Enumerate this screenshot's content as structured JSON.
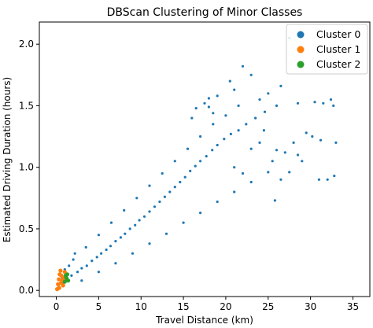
{
  "chart_data": {
    "type": "scatter",
    "title": "DBScan Clustering of Minor Classes",
    "xlabel": "Travel Distance (km)",
    "ylabel": "Estimated Driving Duration (hours)",
    "xlim": [
      -2,
      37
    ],
    "ylim": [
      -0.05,
      2.18
    ],
    "xticks": [
      0,
      5,
      10,
      15,
      20,
      25,
      30,
      35
    ],
    "xtick_labels": [
      "0",
      "5",
      "10",
      "15",
      "20",
      "25",
      "30",
      "35"
    ],
    "yticks": [
      0.0,
      0.5,
      1.0,
      1.5,
      2.0
    ],
    "ytick_labels": [
      "0.0",
      "0.5",
      "1.0",
      "1.5",
      "2.0"
    ],
    "grid": false,
    "legend_position": "top-right",
    "series": [
      {
        "name": "Cluster 0",
        "color": "#1f77b4",
        "points": [
          [
            0.3,
            0.03
          ],
          [
            0.8,
            0.06
          ],
          [
            1.2,
            0.09
          ],
          [
            1.8,
            0.12
          ],
          [
            2.5,
            0.15
          ],
          [
            3.0,
            0.18
          ],
          [
            3.6,
            0.2
          ],
          [
            4.2,
            0.24
          ],
          [
            4.8,
            0.27
          ],
          [
            5.3,
            0.3
          ],
          [
            5.9,
            0.33
          ],
          [
            6.4,
            0.36
          ],
          [
            7.0,
            0.4
          ],
          [
            7.6,
            0.43
          ],
          [
            8.1,
            0.46
          ],
          [
            8.7,
            0.5
          ],
          [
            9.3,
            0.53
          ],
          [
            9.8,
            0.57
          ],
          [
            10.4,
            0.6
          ],
          [
            11.0,
            0.64
          ],
          [
            11.6,
            0.68
          ],
          [
            12.2,
            0.72
          ],
          [
            12.8,
            0.76
          ],
          [
            13.4,
            0.8
          ],
          [
            14.0,
            0.84
          ],
          [
            14.6,
            0.88
          ],
          [
            15.2,
            0.92
          ],
          [
            15.8,
            0.97
          ],
          [
            16.4,
            1.01
          ],
          [
            17.0,
            1.05
          ],
          [
            17.7,
            1.09
          ],
          [
            18.4,
            1.14
          ],
          [
            19.0,
            1.18
          ],
          [
            19.8,
            1.23
          ],
          [
            20.6,
            1.27
          ],
          [
            21.5,
            1.3
          ],
          [
            22.4,
            1.35
          ],
          [
            23.5,
            1.4
          ],
          [
            24.6,
            1.45
          ],
          [
            26.0,
            1.5
          ],
          [
            2.0,
            0.25
          ],
          [
            3.5,
            0.35
          ],
          [
            5.0,
            0.45
          ],
          [
            6.5,
            0.55
          ],
          [
            8.0,
            0.65
          ],
          [
            9.5,
            0.75
          ],
          [
            11.0,
            0.85
          ],
          [
            12.5,
            0.95
          ],
          [
            14.0,
            1.05
          ],
          [
            15.5,
            1.15
          ],
          [
            17.0,
            1.25
          ],
          [
            18.5,
            1.35
          ],
          [
            20.0,
            1.42
          ],
          [
            21.5,
            1.5
          ],
          [
            18.0,
            1.49
          ],
          [
            16.0,
            1.4
          ],
          [
            3.0,
            0.08
          ],
          [
            5.0,
            0.15
          ],
          [
            7.0,
            0.22
          ],
          [
            9.0,
            0.3
          ],
          [
            11.0,
            0.38
          ],
          [
            13.0,
            0.46
          ],
          [
            15.0,
            0.55
          ],
          [
            17.0,
            0.63
          ],
          [
            19.0,
            0.72
          ],
          [
            21.0,
            0.8
          ],
          [
            23.0,
            0.88
          ],
          [
            25.0,
            0.96
          ],
          [
            1.5,
            0.2
          ],
          [
            2.2,
            0.3
          ],
          [
            1.0,
            0.17
          ],
          [
            0.7,
            0.1
          ],
          [
            26.0,
            1.14
          ],
          [
            27.0,
            1.12
          ],
          [
            28.0,
            1.2
          ],
          [
            25.5,
            1.05
          ],
          [
            24.0,
            1.2
          ],
          [
            23.0,
            1.15
          ],
          [
            21.0,
            1.0
          ],
          [
            24.5,
            1.3
          ],
          [
            22.0,
            0.95
          ],
          [
            27.5,
            2.05
          ],
          [
            28.5,
            1.52
          ],
          [
            30.5,
            1.53
          ],
          [
            31.5,
            1.52
          ],
          [
            32.4,
            1.55
          ],
          [
            32.7,
            1.5
          ],
          [
            31.0,
            0.9
          ],
          [
            32.0,
            0.9
          ],
          [
            32.8,
            0.93
          ],
          [
            29.5,
            1.28
          ],
          [
            30.2,
            1.25
          ],
          [
            31.2,
            1.22
          ],
          [
            28.5,
            1.1
          ],
          [
            29.0,
            1.05
          ],
          [
            33.0,
            1.2
          ],
          [
            26.5,
            0.9
          ],
          [
            27.5,
            0.96
          ],
          [
            25.8,
            0.73
          ],
          [
            18.0,
            1.56
          ],
          [
            19.0,
            1.58
          ],
          [
            20.5,
            1.7
          ],
          [
            22.0,
            1.82
          ],
          [
            23.0,
            1.75
          ],
          [
            21.0,
            1.63
          ],
          [
            16.5,
            1.48
          ],
          [
            24.0,
            1.55
          ],
          [
            25.0,
            1.6
          ],
          [
            26.5,
            1.66
          ],
          [
            17.5,
            1.52
          ],
          [
            18.5,
            1.44
          ]
        ]
      },
      {
        "name": "Cluster 1",
        "color": "#ff7f0e",
        "points": [
          [
            0.1,
            0.01
          ],
          [
            0.2,
            0.05
          ],
          [
            0.3,
            0.09
          ],
          [
            0.4,
            0.13
          ],
          [
            0.5,
            0.16
          ],
          [
            0.6,
            0.12
          ],
          [
            0.7,
            0.08
          ],
          [
            0.8,
            0.04
          ],
          [
            0.9,
            0.1
          ],
          [
            1.0,
            0.15
          ],
          [
            0.35,
            0.02
          ],
          [
            0.55,
            0.06
          ]
        ]
      },
      {
        "name": "Cluster 2",
        "color": "#2ca02c",
        "points": [
          [
            1.0,
            0.07
          ],
          [
            1.2,
            0.1
          ],
          [
            1.3,
            0.13
          ],
          [
            1.4,
            0.08
          ],
          [
            1.1,
            0.12
          ]
        ]
      }
    ]
  }
}
